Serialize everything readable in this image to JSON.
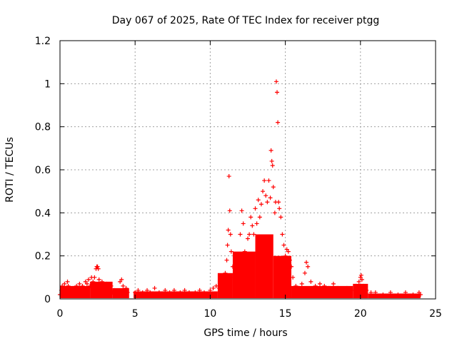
{
  "chart_data": {
    "type": "scatter",
    "title": "Day 067 of 2025, Rate Of TEC Index for receiver ptgg",
    "xlabel": "GPS time / hours",
    "ylabel": "ROTI / TECUs",
    "xlim": [
      0,
      25
    ],
    "ylim": [
      0,
      1.2
    ],
    "x_ticks": [
      "0",
      "5",
      "10",
      "15",
      "20",
      "25"
    ],
    "y_ticks": [
      "0",
      "0.2",
      "0.4",
      "0.6",
      "0.8",
      "1",
      "1.2"
    ],
    "grid": true,
    "marker": "+",
    "color": "#ff0000",
    "series": [
      {
        "x": [
          0.0,
          0.1,
          0.15,
          0.2,
          0.3,
          0.35,
          0.4,
          0.5,
          0.55,
          0.6,
          0.7,
          0.8,
          0.9,
          1.0,
          1.1,
          1.2,
          1.3,
          1.4,
          1.5,
          1.6,
          1.7,
          1.8,
          1.9,
          2.0,
          2.1,
          2.2,
          2.3,
          2.4,
          2.45,
          2.5,
          2.55,
          2.6,
          2.7,
          2.8,
          2.9,
          3.0,
          3.1,
          3.2,
          3.3,
          3.4,
          3.5,
          3.6,
          3.8,
          4.0,
          4.1,
          4.2,
          4.3,
          4.4,
          4.5,
          5.0,
          5.2,
          5.5,
          5.8,
          6.0,
          6.3,
          6.6,
          7.0,
          7.3,
          7.6,
          8.0,
          8.3,
          8.6,
          9.0,
          9.3,
          9.6,
          10.0,
          10.2,
          10.4,
          10.6,
          10.8,
          10.9,
          11.0,
          11.1,
          11.15,
          11.2,
          11.25,
          11.3,
          11.35,
          11.4,
          11.5,
          11.6,
          11.7,
          11.8,
          11.9,
          12.0,
          12.1,
          12.2,
          12.3,
          12.4,
          12.5,
          12.6,
          12.7,
          12.8,
          12.9,
          13.0,
          13.1,
          13.2,
          13.3,
          13.4,
          13.5,
          13.6,
          13.7,
          13.8,
          13.9,
          14.0,
          14.05,
          14.1,
          14.15,
          14.2,
          14.3,
          14.35,
          14.4,
          14.45,
          14.5,
          14.55,
          14.6,
          14.7,
          14.8,
          14.9,
          15.0,
          15.1,
          15.2,
          15.3,
          15.4,
          15.5,
          15.7,
          15.9,
          16.1,
          16.3,
          16.4,
          16.5,
          16.7,
          17.0,
          17.3,
          17.6,
          17.9,
          18.2,
          18.5,
          18.8,
          19.1,
          19.4,
          19.7,
          19.9,
          20.0,
          20.05,
          20.1,
          20.2,
          20.4,
          20.7,
          21.0,
          21.5,
          22.0,
          22.5,
          23.0,
          23.5,
          23.9,
          24.0
        ],
        "y": [
          0.02,
          0.04,
          0.06,
          0.03,
          0.07,
          0.05,
          0.04,
          0.08,
          0.06,
          0.05,
          0.04,
          0.03,
          0.05,
          0.04,
          0.06,
          0.05,
          0.07,
          0.04,
          0.06,
          0.05,
          0.08,
          0.07,
          0.09,
          0.06,
          0.1,
          0.08,
          0.1,
          0.14,
          0.15,
          0.15,
          0.14,
          0.09,
          0.07,
          0.08,
          0.05,
          0.06,
          0.07,
          0.05,
          0.04,
          0.06,
          0.03,
          0.04,
          0.03,
          0.08,
          0.09,
          0.06,
          0.04,
          0.05,
          0.03,
          0.03,
          0.04,
          0.03,
          0.04,
          0.03,
          0.05,
          0.03,
          0.04,
          0.03,
          0.04,
          0.03,
          0.04,
          0.03,
          0.03,
          0.04,
          0.03,
          0.04,
          0.05,
          0.06,
          0.05,
          0.08,
          0.1,
          0.12,
          0.18,
          0.25,
          0.32,
          0.57,
          0.41,
          0.3,
          0.22,
          0.15,
          0.1,
          0.08,
          0.12,
          0.18,
          0.3,
          0.41,
          0.35,
          0.22,
          0.18,
          0.28,
          0.3,
          0.38,
          0.34,
          0.3,
          0.42,
          0.35,
          0.46,
          0.38,
          0.44,
          0.5,
          0.55,
          0.48,
          0.45,
          0.55,
          0.47,
          0.69,
          0.64,
          0.62,
          0.52,
          0.4,
          0.45,
          1.01,
          0.96,
          0.82,
          0.45,
          0.42,
          0.38,
          0.3,
          0.25,
          0.2,
          0.23,
          0.22,
          0.18,
          0.15,
          0.1,
          0.06,
          0.05,
          0.07,
          0.12,
          0.17,
          0.15,
          0.08,
          0.06,
          0.07,
          0.06,
          0.05,
          0.07,
          0.05,
          0.04,
          0.05,
          0.04,
          0.06,
          0.08,
          0.1,
          0.11,
          0.09,
          0.06,
          0.04,
          0.03,
          0.03,
          0.02,
          0.03,
          0.02,
          0.03,
          0.02,
          0.03,
          0.02
        ]
      }
    ],
    "background_band": {
      "segments": [
        {
          "x": [
            0.0,
            2.0
          ],
          "y_max": 0.06
        },
        {
          "x": [
            2.0,
            3.5
          ],
          "y_max": 0.08
        },
        {
          "x": [
            3.5,
            4.6
          ],
          "y_max": 0.05
        },
        {
          "x": [
            4.9,
            10.5
          ],
          "y_max": 0.035
        },
        {
          "x": [
            10.5,
            11.5
          ],
          "y_max": 0.12
        },
        {
          "x": [
            11.5,
            13.0
          ],
          "y_max": 0.22
        },
        {
          "x": [
            13.0,
            14.2
          ],
          "y_max": 0.3
        },
        {
          "x": [
            14.2,
            15.4
          ],
          "y_max": 0.2
        },
        {
          "x": [
            15.4,
            19.5
          ],
          "y_max": 0.06
        },
        {
          "x": [
            19.5,
            20.5
          ],
          "y_max": 0.07
        },
        {
          "x": [
            20.5,
            24.0
          ],
          "y_max": 0.025
        }
      ]
    }
  }
}
